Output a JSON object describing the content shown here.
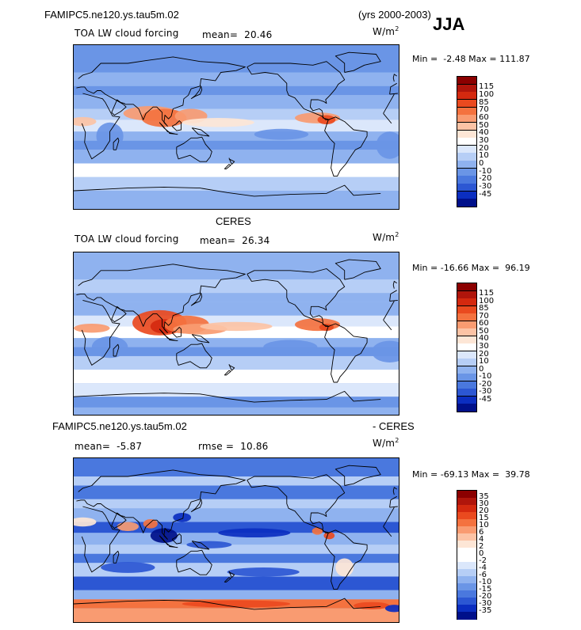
{
  "header": {
    "case_name": "FAMIPC5.ne120.ys.tau5m.02",
    "years": "(yrs 2000-2003)",
    "season": "JJA"
  },
  "chart_data": [
    {
      "type": "heatmap",
      "title": "FAMIPC5.ne120.ys.tau5m.02",
      "subtitle": "TOA LW cloud forcing",
      "mean_label": "mean=  20.46",
      "units": "W/m",
      "units_exp": "2",
      "minmax_label": "Min =  -2.48 Max = 111.87",
      "min": -2.48,
      "max": 111.87,
      "mean": 20.46,
      "colorbar_levels": [
        "115",
        "100",
        "85",
        "70",
        "60",
        "50",
        "40",
        "30",
        "20",
        "10",
        "0",
        "-10",
        "-20",
        "-30",
        "-45"
      ],
      "colors": [
        "#8b0000",
        "#b0150b",
        "#d4290f",
        "#ea4a1f",
        "#f4723f",
        "#f99b71",
        "#fcc3a5",
        "#fde6d6",
        "#ffffff",
        "#dbe7fb",
        "#b6cef6",
        "#8fb2ef",
        "#6a95e6",
        "#4a78de",
        "#2c57d3",
        "#0b2ec0",
        "#00108a"
      ],
      "ylim": [
        -90,
        90
      ],
      "xlim": [
        0,
        360
      ]
    },
    {
      "type": "heatmap",
      "title": "CERES",
      "subtitle": "TOA LW cloud forcing",
      "mean_label": "mean=  26.34",
      "units": "W/m",
      "units_exp": "2",
      "minmax_label": "Min = -16.66 Max =  96.19",
      "min": -16.66,
      "max": 96.19,
      "mean": 26.34,
      "colorbar_levels": [
        "115",
        "100",
        "85",
        "70",
        "60",
        "50",
        "40",
        "30",
        "20",
        "10",
        "0",
        "-10",
        "-20",
        "-30",
        "-45"
      ],
      "colors": [
        "#8b0000",
        "#b0150b",
        "#d4290f",
        "#ea4a1f",
        "#f4723f",
        "#f99b71",
        "#fcc3a5",
        "#fde6d6",
        "#ffffff",
        "#dbe7fb",
        "#b6cef6",
        "#8fb2ef",
        "#6a95e6",
        "#4a78de",
        "#2c57d3",
        "#0b2ec0",
        "#00108a"
      ],
      "ylim": [
        -90,
        90
      ],
      "xlim": [
        0,
        360
      ]
    },
    {
      "type": "heatmap",
      "title_left": "FAMIPC5.ne120.ys.tau5m.02",
      "title_right": "- CERES",
      "mean_label": "mean=  -5.87",
      "rmse_label": "rmse =  10.86",
      "units": "W/m",
      "units_exp": "2",
      "minmax_label": "Min = -69.13 Max =  39.78",
      "min": -69.13,
      "max": 39.78,
      "mean": -5.87,
      "rmse": 10.86,
      "colorbar_levels": [
        "35",
        "30",
        "20",
        "15",
        "10",
        "6",
        "4",
        "2",
        "0",
        "-2",
        "-4",
        "-6",
        "-10",
        "-15",
        "-20",
        "-30",
        "-35"
      ],
      "colors": [
        "#8b0000",
        "#b0150b",
        "#d4290f",
        "#ea4a1f",
        "#f4723f",
        "#f99b71",
        "#fcc3a5",
        "#fde6d6",
        "#ffffff",
        "#ffffff",
        "#dbe7fb",
        "#b6cef6",
        "#8fb2ef",
        "#6a95e6",
        "#4a78de",
        "#2c57d3",
        "#0b2ec0",
        "#00108a"
      ],
      "ylim": [
        -90,
        90
      ],
      "xlim": [
        0,
        360
      ]
    }
  ]
}
